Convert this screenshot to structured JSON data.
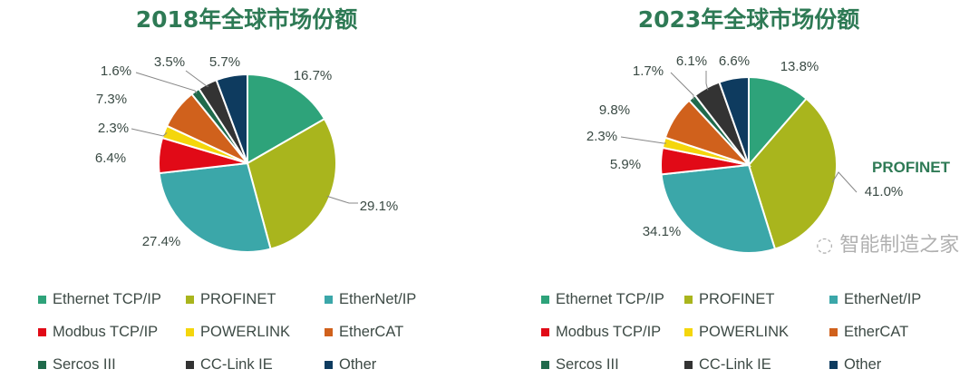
{
  "chart_data": [
    {
      "type": "pie",
      "title": "2018年全球市场份额",
      "categories": [
        "Ethernet TCP/IP",
        "PROFINET",
        "EtherNet/IP",
        "Modbus TCP/IP",
        "POWERLINK",
        "EtherCAT",
        "Sercos III",
        "CC-Link IE",
        "Other"
      ],
      "values": [
        16.7,
        29.1,
        27.4,
        6.4,
        2.3,
        7.3,
        1.6,
        3.5,
        5.7
      ],
      "labels": [
        "16.7%",
        "29.1%",
        "27.4%",
        "6.4%",
        "2.3%",
        "7.3%",
        "1.6%",
        "3.5%",
        "5.7%"
      ],
      "legend": "bottom"
    },
    {
      "type": "pie",
      "title": "2023年全球市场份额",
      "categories": [
        "Ethernet TCP/IP",
        "PROFINET",
        "EtherNet/IP",
        "Modbus TCP/IP",
        "POWERLINK",
        "EtherCAT",
        "Sercos III",
        "CC-Link IE",
        "Other"
      ],
      "values": [
        13.8,
        41.0,
        34.1,
        5.9,
        2.3,
        9.8,
        1.7,
        6.1,
        6.6
      ],
      "labels": [
        "13.8%",
        "41.0%",
        "34.1%",
        "5.9%",
        "2.3%",
        "9.8%",
        "1.7%",
        "6.1%",
        "6.6%"
      ],
      "annotation": "PROFINET",
      "legend": "bottom"
    }
  ],
  "colors": [
    "#2ea37a",
    "#a9b51d",
    "#3ba7a9",
    "#e10a17",
    "#f4d60c",
    "#d0611c",
    "#1f6a4b",
    "#333333",
    "#0e3b5f"
  ],
  "watermark": "智能制造之家"
}
